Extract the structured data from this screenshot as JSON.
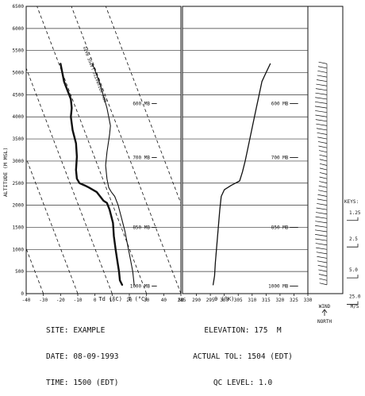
{
  "chart_data": {
    "type": "line",
    "ylabel": "ALTITUDE (M MSL)",
    "ylim": [
      0,
      6500
    ],
    "yticks": [
      0,
      500,
      1000,
      1500,
      2000,
      2500,
      3000,
      3500,
      4000,
      4500,
      5000,
      5500,
      6000,
      6500
    ],
    "panels": [
      {
        "name": "temperature",
        "xlim": [
          -40,
          50
        ],
        "xticks": [
          -40,
          -30,
          -20,
          -10,
          0,
          10,
          20,
          30,
          40,
          50
        ],
        "x_axis_labels": [
          "Td (°C)",
          "T (°C)"
        ],
        "annotations": [
          "DRY ADIABATIC LAPSE RATE"
        ],
        "series": [
          {
            "label": "T",
            "x": [
              22.8,
              22.0,
              20.5,
              19.0,
              17.5,
              15.5,
              13.5,
              11.5,
              9.5,
              8.0,
              7.0,
              6.2,
              7.0,
              8.5,
              9.0,
              8.0,
              7.0,
              5.5,
              4.0,
              2.5,
              1.5,
              0.5,
              -0.5,
              -1.5
            ],
            "y": [
              200,
              500,
              800,
              1100,
              1400,
              1700,
              2000,
              2200,
              2300,
              2400,
              2600,
              2900,
              3200,
              3600,
              3800,
              4000,
              4200,
              4400,
              4600,
              4800,
              4900,
              5000,
              5100,
              5200
            ]
          },
          {
            "label": "Td",
            "x": [
              15.8,
              14.5,
              14.0,
              13.0,
              12.0,
              11.0,
              10.5,
              8.5,
              7.5,
              7.0,
              5.0,
              3.0,
              1.0,
              -3.5,
              -6.0,
              -9.0,
              -10.5,
              -11.0,
              -10.5,
              -11.0,
              -13.0,
              -14.0,
              -13.5,
              -14.0,
              -15.0,
              -16.0,
              -17.0,
              -18.0,
              -19.0,
              -20.0
            ],
            "y": [
              200,
              300,
              500,
              750,
              1000,
              1300,
              1600,
              1900,
              2000,
              2050,
              2100,
              2200,
              2300,
              2400,
              2450,
              2500,
              2600,
              2800,
              3100,
              3400,
              3700,
              4000,
              4200,
              4400,
              4500,
              4600,
              4700,
              4800,
              5000,
              5200
            ]
          }
        ]
      },
      {
        "name": "theta",
        "xlim": [
          285,
          330
        ],
        "xticks": [
          285,
          290,
          295,
          300,
          305,
          310,
          315,
          320,
          325,
          330
        ],
        "x_axis_labels": [
          "θ (°K)"
        ],
        "series": [
          {
            "label": "θ",
            "x": [
              296.0,
              296.5,
              296.8,
              297.2,
              297.6,
              298.0,
              298.4,
              298.9,
              300.0,
              302.5,
              305.5,
              306.5,
              307.5,
              308.5,
              309.5,
              310.5,
              311.5,
              312.5,
              313.5,
              315.0,
              316.5
            ],
            "y": [
              200,
              400,
              700,
              1000,
              1300,
              1600,
              1900,
              2200,
              2350,
              2450,
              2550,
              2750,
              3000,
              3300,
              3600,
              3900,
              4200,
              4500,
              4800,
              5000,
              5200
            ]
          }
        ]
      }
    ],
    "pressure_levels": [
      {
        "label": "1000 MB",
        "altitude": 170
      },
      {
        "label": "850 MB",
        "altitude": 1500
      },
      {
        "label": "700 MB",
        "altitude": 3080
      },
      {
        "label": "600 MB",
        "altitude": 4300
      }
    ],
    "wind_panel": {
      "labels": [
        "WIND",
        "NORTH"
      ],
      "units": "M/S",
      "keys": [
        "KEYS:",
        "1.25",
        "2.5",
        "5.0",
        "25.0"
      ]
    }
  },
  "footer": {
    "site": "SITE: EXAMPLE",
    "date": "DATE: 08-09-1993",
    "time": "TIME: 1500 (EDT)",
    "elevation": "ELEVATION: 175  M",
    "actual_tol": "ACTUAL TOL: 1504 (EDT)",
    "qc_level": "QC LEVEL: 1.0"
  },
  "colors": {
    "ink": "#111111",
    "grid": "#333333"
  }
}
